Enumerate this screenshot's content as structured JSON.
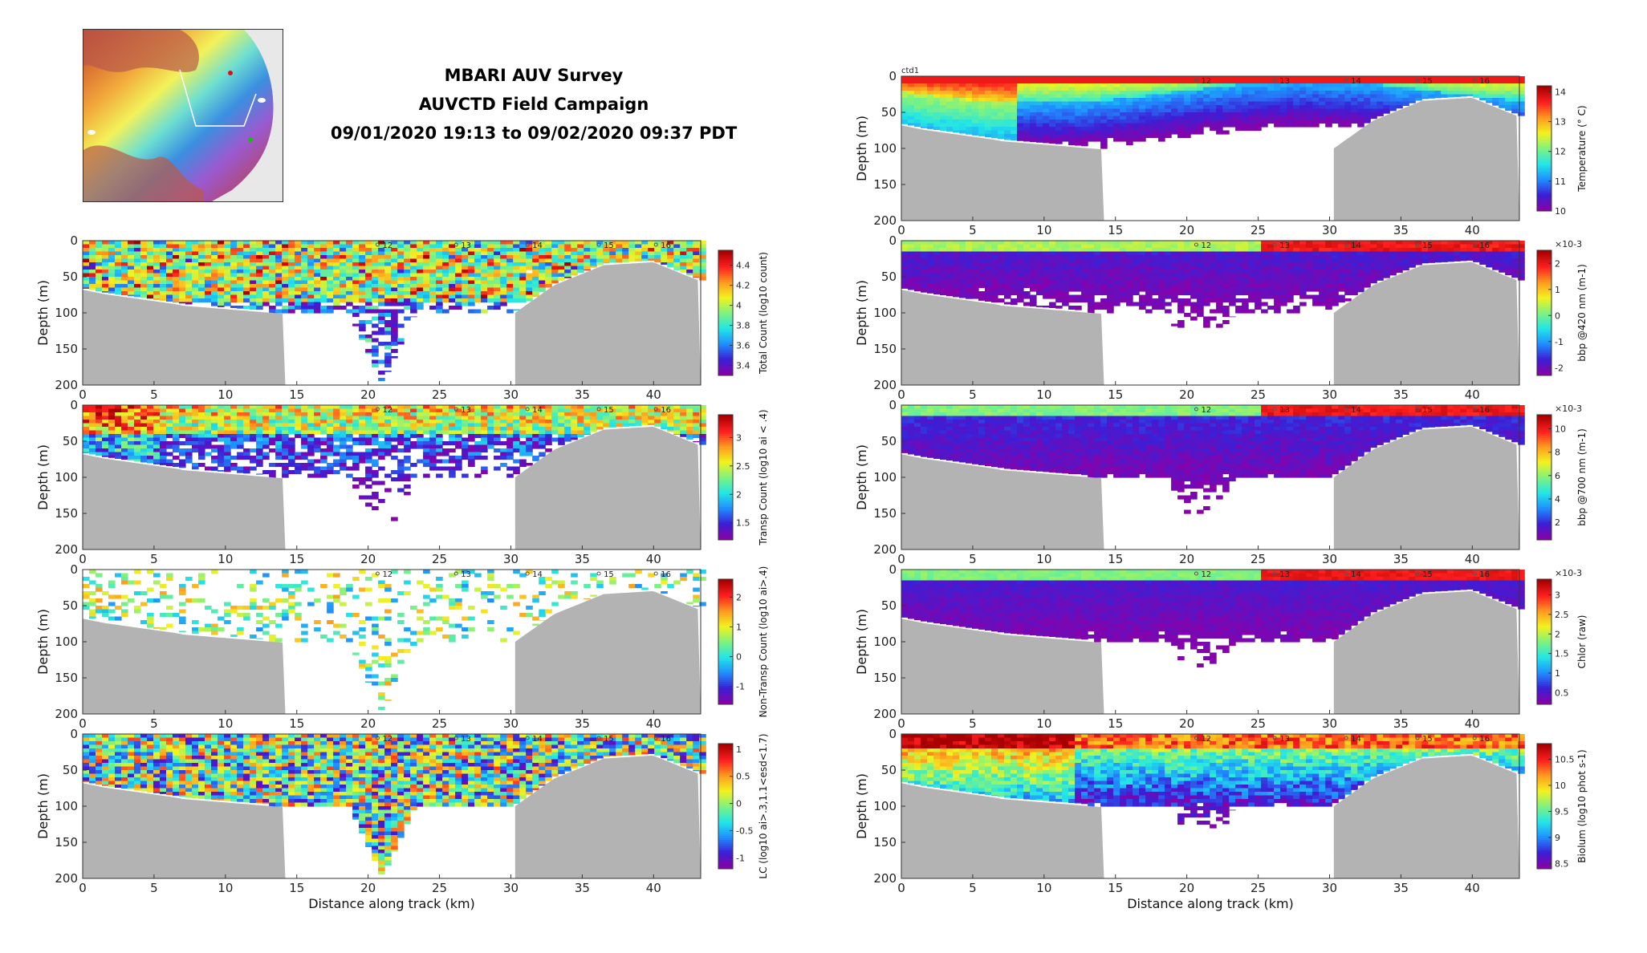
{
  "header": {
    "line1": "MBARI AUV Survey",
    "line2": "AUVCTD Field Campaign",
    "line3": "09/01/2020 19:13 to 09/02/2020 09:37 PDT"
  },
  "colors": {
    "bathymetry": "#b3b3b3",
    "colormap": [
      "#8b00a8",
      "#3b1fd6",
      "#1f8fff",
      "#22e6e6",
      "#7ff27f",
      "#f2f21f",
      "#ff9a1f",
      "#ff1f1f",
      "#a80000"
    ]
  },
  "chart_data": [
    {
      "type": "heatmap",
      "panel": "left-1",
      "ylabel": "Depth (m)",
      "xlabel": "",
      "xlim": [
        0,
        43.3
      ],
      "ylim": [
        200,
        0
      ],
      "x_ticks": [
        "0",
        "5",
        "10",
        "15",
        "20",
        "25",
        "30",
        "35",
        "40"
      ],
      "y_ticks": [
        "0",
        "50",
        "100",
        "150",
        "200"
      ],
      "colorbar": {
        "label": "Total Count (log10 count)",
        "ticks": [
          "3.4",
          "3.6",
          "3.8",
          "4",
          "4.2",
          "4.4"
        ],
        "range": [
          3.3,
          4.55
        ]
      },
      "profile_labels": [
        "12",
        "13",
        "14",
        "15",
        "16"
      ]
    },
    {
      "type": "heatmap",
      "panel": "left-2",
      "ylabel": "Depth (m)",
      "xlabel": "",
      "xlim": [
        0,
        43.3
      ],
      "ylim": [
        200,
        0
      ],
      "x_ticks": [
        "0",
        "5",
        "10",
        "15",
        "20",
        "25",
        "30",
        "35",
        "40"
      ],
      "y_ticks": [
        "0",
        "50",
        "100",
        "150",
        "200"
      ],
      "colorbar": {
        "label": "Transp Count (log10 ai < .4)",
        "ticks": [
          "1.5",
          "2",
          "2.5",
          "3"
        ],
        "range": [
          1.2,
          3.4
        ]
      },
      "profile_labels": [
        "12",
        "13",
        "14",
        "15",
        "16"
      ]
    },
    {
      "type": "heatmap",
      "panel": "left-3",
      "ylabel": "Depth (m)",
      "xlabel": "",
      "xlim": [
        0,
        43.3
      ],
      "ylim": [
        200,
        0
      ],
      "x_ticks": [
        "0",
        "5",
        "10",
        "15",
        "20",
        "25",
        "30",
        "35",
        "40"
      ],
      "y_ticks": [
        "0",
        "50",
        "100",
        "150",
        "200"
      ],
      "colorbar": {
        "label": "Non-Transp Count (log10 ai>.4)",
        "ticks": [
          "-1",
          "0",
          "1",
          "2"
        ],
        "range": [
          -1.6,
          2.6
        ]
      },
      "profile_labels": [
        "12",
        "13",
        "14",
        "15",
        "16"
      ]
    },
    {
      "type": "heatmap",
      "panel": "left-4",
      "ylabel": "Depth (m)",
      "xlabel": "Distance along track (km)",
      "xlim": [
        0,
        43.3
      ],
      "ylim": [
        200,
        0
      ],
      "x_ticks": [
        "0",
        "5",
        "10",
        "15",
        "20",
        "25",
        "30",
        "35",
        "40"
      ],
      "y_ticks": [
        "0",
        "50",
        "100",
        "150",
        "200"
      ],
      "colorbar": {
        "label": "LC (log10 ai>.3,1.1<esd<1.7)",
        "ticks": [
          "-1",
          "-0.5",
          "0",
          "0.5",
          "1"
        ],
        "range": [
          -1.2,
          1.1
        ]
      },
      "profile_labels": [
        "12",
        "13",
        "14",
        "15",
        "16"
      ]
    },
    {
      "type": "heatmap",
      "panel": "right-1",
      "ylabel": "Depth (m)",
      "xlabel": "",
      "annotation": "ctd1",
      "xlim": [
        0,
        43.3
      ],
      "ylim": [
        200,
        0
      ],
      "x_ticks": [
        "0",
        "5",
        "10",
        "15",
        "20",
        "25",
        "30",
        "35",
        "40"
      ],
      "y_ticks": [
        "0",
        "50",
        "100",
        "150",
        "200"
      ],
      "colorbar": {
        "label": "Temperature (° C)",
        "ticks": [
          "10",
          "11",
          "12",
          "13",
          "14"
        ],
        "range": [
          10,
          14.2
        ]
      },
      "profile_labels": [
        "12",
        "13",
        "14",
        "15",
        "16"
      ]
    },
    {
      "type": "heatmap",
      "panel": "right-2",
      "ylabel": "Depth (m)",
      "xlabel": "",
      "xlim": [
        0,
        43.3
      ],
      "ylim": [
        200,
        0
      ],
      "x_ticks": [
        "0",
        "5",
        "10",
        "15",
        "20",
        "25",
        "30",
        "35",
        "40"
      ],
      "y_ticks": [
        "0",
        "50",
        "100",
        "150",
        "200"
      ],
      "colorbar": {
        "label": "bbp @420 nm (m-1)",
        "ticks": [
          "-2",
          "-1",
          "0",
          "1",
          "2"
        ],
        "range": [
          -2.3,
          2.5
        ],
        "exponent": "×10-3"
      },
      "profile_labels": [
        "12",
        "13",
        "14",
        "15",
        "16"
      ]
    },
    {
      "type": "heatmap",
      "panel": "right-3",
      "ylabel": "Depth (m)",
      "xlabel": "",
      "xlim": [
        0,
        43.3
      ],
      "ylim": [
        200,
        0
      ],
      "x_ticks": [
        "0",
        "5",
        "10",
        "15",
        "20",
        "25",
        "30",
        "35",
        "40"
      ],
      "y_ticks": [
        "0",
        "50",
        "100",
        "150",
        "200"
      ],
      "colorbar": {
        "label": "bbp @700 nm (m-1)",
        "ticks": [
          "2",
          "4",
          "6",
          "8",
          "10"
        ],
        "range": [
          0.5,
          11.2
        ],
        "exponent": "×10-3"
      },
      "profile_labels": [
        "12",
        "13",
        "14",
        "15",
        "16"
      ]
    },
    {
      "type": "heatmap",
      "panel": "right-4",
      "ylabel": "Depth (m)",
      "xlabel": "",
      "xlim": [
        0,
        43.3
      ],
      "ylim": [
        200,
        0
      ],
      "x_ticks": [
        "0",
        "5",
        "10",
        "15",
        "20",
        "25",
        "30",
        "35",
        "40"
      ],
      "y_ticks": [
        "0",
        "50",
        "100",
        "150",
        "200"
      ],
      "colorbar": {
        "label": "Chlor (raw)",
        "ticks": [
          "0.5",
          "1",
          "1.5",
          "2",
          "2.5",
          "3"
        ],
        "range": [
          0.2,
          3.4
        ],
        "exponent": "×10-3"
      },
      "profile_labels": [
        "12",
        "13",
        "14",
        "15",
        "16"
      ]
    },
    {
      "type": "heatmap",
      "panel": "right-5",
      "ylabel": "Depth (m)",
      "xlabel": "Distance along track (km)",
      "xlim": [
        0,
        43.3
      ],
      "ylim": [
        200,
        0
      ],
      "x_ticks": [
        "0",
        "5",
        "10",
        "15",
        "20",
        "25",
        "30",
        "35",
        "40"
      ],
      "y_ticks": [
        "0",
        "50",
        "100",
        "150",
        "200"
      ],
      "colorbar": {
        "label": "Biolum (log10 phot s-1)",
        "ticks": [
          "8.5",
          "9",
          "9.5",
          "10",
          "10.5"
        ],
        "range": [
          8.4,
          10.8
        ]
      },
      "profile_labels": [
        "12",
        "13",
        "14",
        "15",
        "16"
      ]
    }
  ]
}
